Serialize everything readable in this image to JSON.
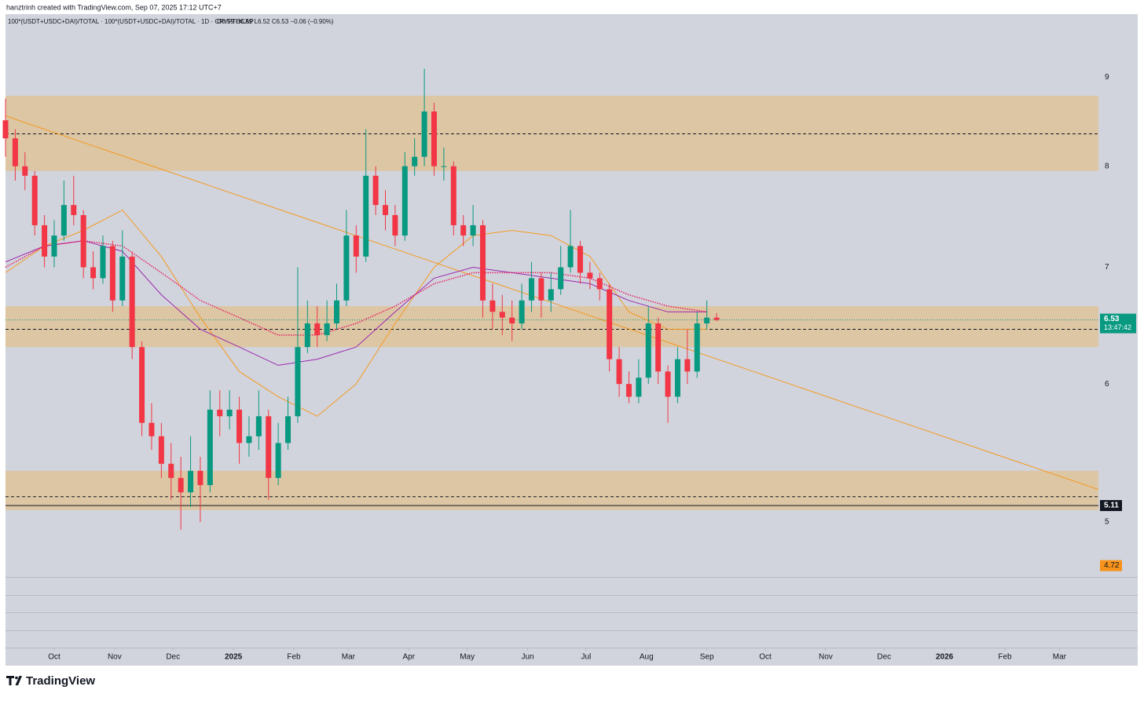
{
  "header": {
    "attribution": "hanztrinh created with TradingView.com, Sep 07, 2025 17:12 UTC+7"
  },
  "footer": {
    "brand": "TradingView"
  },
  "chart_data": {
    "type": "candlestick",
    "symbol_line": "100*(USDT+USDC+DAI)/TOTAL · 100*(USDT+USDC+DAI)/TOTAL · 1D · CRYPTOCAP",
    "ohlc_readout": "O6.59  H6.59  L6.52  C6.53  −0.06 (−0.90%)",
    "x": [
      0,
      5,
      10,
      15,
      20,
      25,
      30,
      35,
      40,
      45,
      50,
      55,
      60,
      65,
      70,
      75,
      80,
      85,
      90,
      95,
      100,
      105,
      110,
      115,
      120,
      125,
      130,
      135,
      140,
      145,
      150,
      155,
      160,
      165,
      170,
      175,
      180,
      185,
      190,
      195,
      200,
      205,
      210,
      215,
      220,
      225,
      230,
      235,
      240,
      245,
      250,
      255,
      260,
      265,
      270,
      275,
      280,
      285,
      290,
      295,
      300,
      305,
      310,
      315,
      320,
      325,
      330,
      335,
      340,
      345,
      350,
      355,
      360,
      365
    ],
    "open": [
      8.5,
      8.3,
      8.0,
      7.9,
      7.4,
      7.1,
      7.3,
      7.6,
      7.5,
      7.0,
      6.9,
      7.2,
      6.7,
      7.1,
      6.3,
      5.7,
      5.6,
      5.4,
      5.3,
      5.2,
      5.35,
      5.25,
      5.8,
      5.75,
      5.8,
      5.55,
      5.6,
      5.75,
      5.3,
      5.55,
      5.75,
      6.3,
      6.5,
      6.4,
      6.5,
      6.7,
      7.3,
      7.1,
      7.9,
      7.6,
      7.5,
      7.3,
      8.0,
      8.1,
      8.6,
      8.0,
      8.0,
      7.4,
      7.3,
      7.4,
      6.7,
      6.6,
      6.55,
      6.5,
      6.7,
      6.9,
      6.7,
      6.8,
      7.0,
      7.2,
      6.95,
      6.9,
      6.8,
      6.2,
      6.0,
      5.9,
      6.05,
      6.5,
      6.1,
      5.9,
      6.2,
      6.1,
      6.5,
      6.55
    ],
    "high": [
      8.75,
      8.4,
      8.15,
      7.95,
      7.5,
      7.45,
      7.85,
      7.9,
      7.55,
      7.15,
      7.3,
      7.25,
      7.35,
      7.15,
      6.35,
      5.85,
      5.7,
      5.55,
      5.45,
      5.6,
      5.45,
      5.95,
      5.95,
      5.95,
      5.9,
      5.75,
      5.95,
      5.8,
      5.7,
      5.9,
      7.0,
      6.7,
      6.65,
      6.7,
      6.85,
      7.55,
      7.4,
      8.4,
      8.0,
      7.75,
      7.6,
      8.15,
      8.3,
      9.1,
      8.7,
      8.2,
      8.05,
      7.5,
      7.6,
      7.45,
      6.85,
      6.75,
      6.7,
      6.85,
      7.05,
      6.95,
      6.95,
      7.2,
      7.55,
      7.25,
      7.05,
      6.95,
      6.85,
      6.3,
      6.1,
      6.2,
      6.65,
      6.55,
      6.15,
      6.3,
      6.45,
      6.6,
      6.7,
      6.59
    ],
    "low": [
      8.1,
      7.85,
      7.75,
      7.3,
      7.0,
      7.0,
      7.25,
      7.4,
      6.9,
      6.8,
      6.85,
      6.6,
      6.65,
      6.2,
      5.6,
      5.5,
      5.3,
      5.15,
      4.95,
      5.1,
      5.0,
      5.2,
      5.6,
      5.65,
      5.4,
      5.45,
      5.5,
      5.15,
      5.25,
      5.5,
      5.7,
      6.25,
      6.3,
      6.35,
      6.45,
      6.65,
      6.95,
      7.05,
      7.5,
      7.35,
      7.2,
      7.25,
      7.9,
      8.0,
      7.9,
      7.85,
      7.3,
      7.2,
      7.2,
      6.55,
      6.45,
      6.4,
      6.35,
      6.45,
      6.6,
      6.55,
      6.6,
      6.75,
      6.95,
      6.85,
      6.8,
      6.7,
      6.1,
      5.9,
      5.85,
      5.85,
      6.0,
      6.0,
      5.7,
      5.85,
      6.0,
      6.05,
      6.45,
      6.52
    ],
    "close": [
      8.3,
      8.0,
      7.9,
      7.4,
      7.1,
      7.3,
      7.6,
      7.5,
      7.0,
      6.9,
      7.2,
      6.7,
      7.1,
      6.3,
      5.7,
      5.6,
      5.4,
      5.3,
      5.2,
      5.35,
      5.25,
      5.8,
      5.75,
      5.8,
      5.55,
      5.6,
      5.75,
      5.3,
      5.55,
      5.75,
      6.3,
      6.5,
      6.4,
      6.5,
      6.7,
      7.3,
      7.1,
      7.9,
      7.6,
      7.5,
      7.3,
      8.0,
      8.1,
      8.6,
      8.0,
      8.0,
      7.4,
      7.3,
      7.4,
      6.7,
      6.6,
      6.55,
      6.5,
      6.7,
      6.9,
      6.7,
      6.8,
      7.0,
      7.2,
      6.95,
      6.9,
      6.8,
      6.2,
      6.0,
      5.9,
      6.05,
      6.5,
      6.1,
      5.9,
      6.2,
      6.1,
      6.5,
      6.55,
      6.53
    ],
    "up_color": "#089981",
    "down_color": "#f23645",
    "log_scale": true,
    "xlim": [
      0,
      561
    ],
    "xticks": [
      {
        "value": 25,
        "label": "Oct"
      },
      {
        "value": 56,
        "label": "Nov"
      },
      {
        "value": 86,
        "label": "Dec"
      },
      {
        "value": 117,
        "label": "2025"
      },
      {
        "value": 148,
        "label": "Feb"
      },
      {
        "value": 176,
        "label": "Mar"
      },
      {
        "value": 207,
        "label": "Apr"
      },
      {
        "value": 237,
        "label": "May"
      },
      {
        "value": 268,
        "label": "Jun"
      },
      {
        "value": 298,
        "label": "Jul"
      },
      {
        "value": 329,
        "label": "Aug"
      },
      {
        "value": 360,
        "label": "Sep"
      },
      {
        "value": 390,
        "label": "Oct"
      },
      {
        "value": 421,
        "label": "Nov"
      },
      {
        "value": 451,
        "label": "Dec"
      },
      {
        "value": 482,
        "label": "2026"
      },
      {
        "value": 513,
        "label": "Feb"
      },
      {
        "value": 541,
        "label": "Mar"
      }
    ],
    "ylim": [
      4.65,
      9.78
    ],
    "yticks": [
      5,
      6,
      7,
      8,
      9
    ],
    "overlays": [
      {
        "color": "#f59a23",
        "style": "solid",
        "x": [
          0,
          20,
          40,
          60,
          80,
          100,
          120,
          140,
          160,
          180,
          200,
          220,
          240,
          260,
          280,
          300,
          320,
          340,
          360
        ],
        "values": [
          6.95,
          7.2,
          7.35,
          7.55,
          7.1,
          6.55,
          6.1,
          5.9,
          5.75,
          6.0,
          6.5,
          7.0,
          7.3,
          7.35,
          7.3,
          7.1,
          6.6,
          6.45,
          6.45
        ]
      },
      {
        "color": "#9c27b0",
        "style": "solid",
        "x": [
          0,
          20,
          40,
          60,
          80,
          100,
          120,
          140,
          160,
          180,
          200,
          220,
          240,
          260,
          280,
          300,
          320,
          340,
          360
        ],
        "values": [
          7.05,
          7.2,
          7.25,
          7.15,
          6.75,
          6.45,
          6.3,
          6.15,
          6.2,
          6.3,
          6.6,
          6.9,
          7.0,
          6.95,
          6.9,
          6.85,
          6.7,
          6.6,
          6.6
        ]
      },
      {
        "color": "#e91e63",
        "style": "dotted",
        "x": [
          0,
          20,
          40,
          60,
          80,
          100,
          120,
          140,
          160,
          180,
          200,
          220,
          240,
          260,
          280,
          300,
          320,
          340,
          360
        ],
        "values": [
          7.0,
          7.2,
          7.25,
          7.2,
          6.95,
          6.7,
          6.55,
          6.4,
          6.4,
          6.5,
          6.65,
          6.85,
          6.95,
          6.95,
          6.95,
          6.9,
          6.75,
          6.65,
          6.6
        ]
      }
    ],
    "zones": [
      {
        "low": 7.95,
        "high": 8.78,
        "mid": 8.35
      },
      {
        "low": 6.3,
        "high": 6.65,
        "mid": 6.45
      },
      {
        "low": 5.08,
        "high": 5.35,
        "mid": 5.17
      }
    ],
    "zone_color": "#dcc6a4",
    "trendline": {
      "color": "#f59a23",
      "x": [
        0,
        561
      ],
      "values": [
        8.55,
        5.22
      ]
    },
    "last_price": 6.53,
    "countdown": "13:47:42",
    "hline": 5.11,
    "alert_price": 4.72,
    "alert_color": "#f7931a"
  }
}
